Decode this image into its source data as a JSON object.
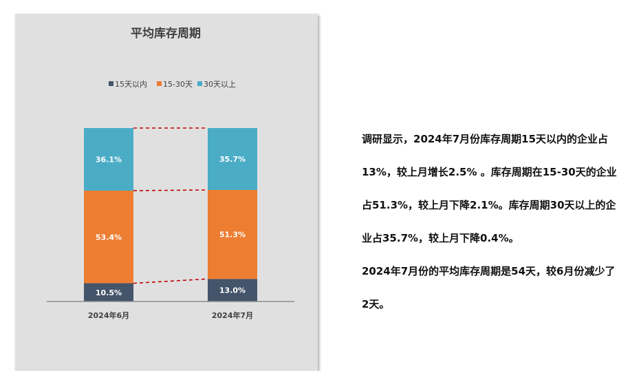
{
  "chart_data": {
    "type": "bar",
    "stacked": "percent",
    "title": "平均库存周期",
    "categories": [
      "2024年6月",
      "2024年7月"
    ],
    "series": [
      {
        "name": "15天以内",
        "values": [
          10.5,
          13.0
        ],
        "labels": [
          "10.5%",
          "13.0%"
        ],
        "color": "#44546a"
      },
      {
        "name": "15-30天",
        "values": [
          53.4,
          51.3
        ],
        "labels": [
          "53.4%",
          "51.3%"
        ],
        "color": "#ed7d31"
      },
      {
        "name": "30天以上",
        "values": [
          36.1,
          35.7
        ],
        "labels": [
          "36.1%",
          "35.7%"
        ],
        "color": "#4bacc6"
      }
    ],
    "ylim": [
      0,
      100
    ],
    "legend_position": "top",
    "grid": false,
    "connector_lines": {
      "style": "dashed",
      "color": "#c00000"
    }
  },
  "description": {
    "paragraphs": [
      "调研显示，2024年7月份库存周期15天以内的企业占13%，较上月增长2.5% 。库存周期在15-30天的企业占51.3%，较上月下降2.1%。库存周期30天以上的企业占35.7%，较上月下降0.4%。",
      "2024年7月份的平均库存周期是54天，较6月份减少了2天。"
    ]
  }
}
